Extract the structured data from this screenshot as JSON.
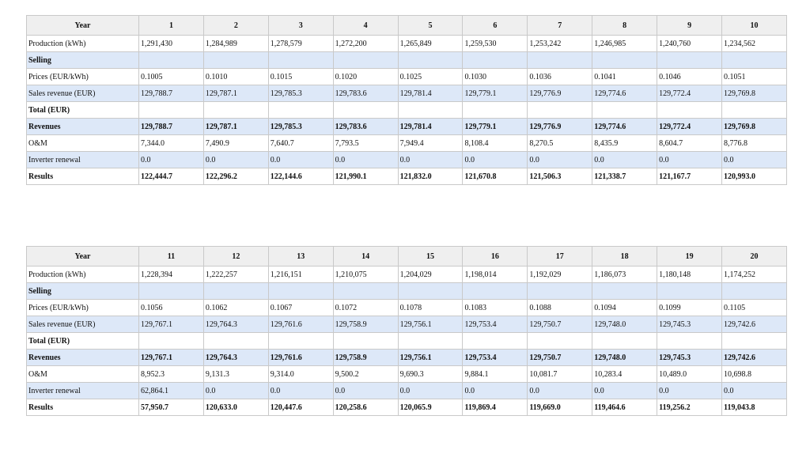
{
  "tables": [
    {
      "header": [
        "Year",
        "1",
        "2",
        "3",
        "4",
        "5",
        "6",
        "7",
        "8",
        "9",
        "10"
      ],
      "rows": [
        {
          "cells": [
            "Production (kWh)",
            "1,291,430",
            "1,284,989",
            "1,278,579",
            "1,272,200",
            "1,265,849",
            "1,259,530",
            "1,253,242",
            "1,246,985",
            "1,240,760",
            "1,234,562"
          ]
        },
        {
          "cells": [
            "Selling",
            "",
            "",
            "",
            "",
            "",
            "",
            "",
            "",
            "",
            ""
          ]
        },
        {
          "cells": [
            "Prices (EUR/kWh)",
            "0.1005",
            "0.1010",
            "0.1015",
            "0.1020",
            "0.1025",
            "0.1030",
            "0.1036",
            "0.1041",
            "0.1046",
            "0.1051"
          ]
        },
        {
          "cells": [
            "Sales revenue (EUR)",
            "129,788.7",
            "129,787.1",
            "129,785.3",
            "129,783.6",
            "129,781.4",
            "129,779.1",
            "129,776.9",
            "129,774.6",
            "129,772.4",
            "129,769.8"
          ]
        },
        {
          "cells": [
            "Total (EUR)",
            "",
            "",
            "",
            "",
            "",
            "",
            "",
            "",
            "",
            ""
          ]
        },
        {
          "cells": [
            "Revenues",
            "129,788.7",
            "129,787.1",
            "129,785.3",
            "129,783.6",
            "129,781.4",
            "129,779.1",
            "129,776.9",
            "129,774.6",
            "129,772.4",
            "129,769.8"
          ]
        },
        {
          "cells": [
            "O&M",
            "7,344.0",
            "7,490.9",
            "7,640.7",
            "7,793.5",
            "7,949.4",
            "8,108.4",
            "8,270.5",
            "8,435.9",
            "8,604.7",
            "8,776.8"
          ]
        },
        {
          "cells": [
            "Inverter renewal",
            "0.0",
            "0.0",
            "0.0",
            "0.0",
            "0.0",
            "0.0",
            "0.0",
            "0.0",
            "0.0",
            "0.0"
          ]
        },
        {
          "cells": [
            "Results",
            "122,444.7",
            "122,296.2",
            "122,144.6",
            "121,990.1",
            "121,832.0",
            "121,670.8",
            "121,506.3",
            "121,338.7",
            "121,167.7",
            "120,993.0"
          ]
        }
      ]
    },
    {
      "header": [
        "Year",
        "11",
        "12",
        "13",
        "14",
        "15",
        "16",
        "17",
        "18",
        "19",
        "20"
      ],
      "rows": [
        {
          "cells": [
            "Production (kWh)",
            "1,228,394",
            "1,222,257",
            "1,216,151",
            "1,210,075",
            "1,204,029",
            "1,198,014",
            "1,192,029",
            "1,186,073",
            "1,180,148",
            "1,174,252"
          ]
        },
        {
          "cells": [
            "Selling",
            "",
            "",
            "",
            "",
            "",
            "",
            "",
            "",
            "",
            ""
          ]
        },
        {
          "cells": [
            "Prices (EUR/kWh)",
            "0.1056",
            "0.1062",
            "0.1067",
            "0.1072",
            "0.1078",
            "0.1083",
            "0.1088",
            "0.1094",
            "0.1099",
            "0.1105"
          ]
        },
        {
          "cells": [
            "Sales revenue (EUR)",
            "129,767.1",
            "129,764.3",
            "129,761.6",
            "129,758.9",
            "129,756.1",
            "129,753.4",
            "129,750.7",
            "129,748.0",
            "129,745.3",
            "129,742.6"
          ]
        },
        {
          "cells": [
            "Total (EUR)",
            "",
            "",
            "",
            "",
            "",
            "",
            "",
            "",
            "",
            ""
          ]
        },
        {
          "cells": [
            "Revenues",
            "129,767.1",
            "129,764.3",
            "129,761.6",
            "129,758.9",
            "129,756.1",
            "129,753.4",
            "129,750.7",
            "129,748.0",
            "129,745.3",
            "129,742.6"
          ]
        },
        {
          "cells": [
            "O&M",
            "8,952.3",
            "9,131.3",
            "9,314.0",
            "9,500.2",
            "9,690.3",
            "9,884.1",
            "10,081.7",
            "10,283.4",
            "10,489.0",
            "10,698.8"
          ]
        },
        {
          "cells": [
            "Inverter renewal",
            "62,864.1",
            "0.0",
            "0.0",
            "0.0",
            "0.0",
            "0.0",
            "0.0",
            "0.0",
            "0.0",
            "0.0"
          ]
        },
        {
          "cells": [
            "Results",
            "57,950.7",
            "120,633.0",
            "120,447.6",
            "120,258.6",
            "120,065.9",
            "119,869.4",
            "119,669.0",
            "119,464.6",
            "119,256.2",
            "119,043.8"
          ]
        }
      ]
    }
  ]
}
